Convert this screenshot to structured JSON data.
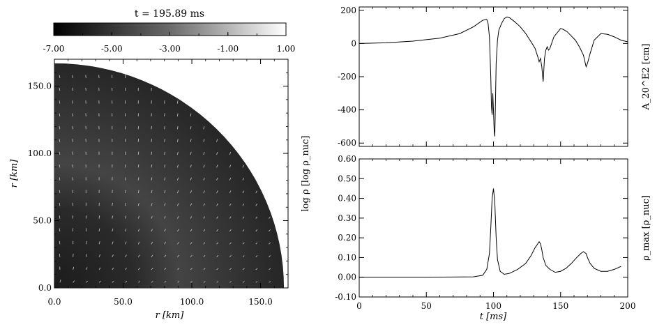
{
  "chart_data": [
    {
      "type": "heatmap",
      "title": "t = 195.89 ms",
      "colorbar": {
        "label": "log ρ [log ρ_nuc]",
        "ticks": [
          "-7.00",
          "-5.00",
          "-3.00",
          "-1.00",
          "1.00"
        ],
        "range": [
          -7.0,
          1.0
        ]
      },
      "xlabel": "r [km]",
      "ylabel": "r [km]",
      "xticks": [
        "0.0",
        "50.0",
        "100.0",
        "150.0"
      ],
      "yticks": [
        "0.0",
        "50.0",
        "100.0",
        "150.0"
      ],
      "xlim": [
        0,
        170
      ],
      "ylim": [
        0,
        170
      ],
      "domain_radius_km": 167,
      "velocity_arrows": true
    },
    {
      "type": "line",
      "ylabel": "A_20^E2 [cm]",
      "ylim": [
        -620,
        220
      ],
      "yticks": [
        "200",
        "0",
        "-200",
        "-400",
        "-600"
      ],
      "xlim": [
        0,
        200
      ],
      "series": [
        {
          "x": [
            0,
            20,
            40,
            60,
            75,
            85,
            92,
            95,
            96,
            97,
            98,
            98.5,
            99,
            99.5,
            100,
            100.5,
            101,
            101.5,
            102,
            103,
            104,
            106,
            108,
            110,
            112,
            116,
            120,
            124,
            128,
            131,
            133,
            134,
            135,
            136,
            137,
            138,
            139,
            140,
            141,
            142,
            145,
            150,
            152,
            155,
            158,
            161,
            164,
            167,
            169,
            170,
            172,
            175,
            180,
            185,
            190,
            195,
            200
          ],
          "y": [
            0,
            4,
            14,
            32,
            60,
            100,
            140,
            145,
            120,
            40,
            -200,
            -380,
            -430,
            -300,
            -400,
            -520,
            -560,
            -350,
            -120,
            20,
            80,
            120,
            150,
            160,
            155,
            130,
            100,
            60,
            10,
            -30,
            -80,
            -110,
            -90,
            -140,
            -230,
            -90,
            -40,
            -20,
            -40,
            -30,
            40,
            90,
            85,
            70,
            45,
            20,
            -20,
            -70,
            -140,
            -120,
            -60,
            20,
            60,
            55,
            40,
            20,
            10
          ]
        }
      ]
    },
    {
      "type": "line",
      "xlabel": "t [ms]",
      "ylabel": "ρ_max [ρ_nuc]",
      "ylim": [
        -0.1,
        0.6
      ],
      "yticks": [
        "0.60",
        "0.50",
        "0.40",
        "0.30",
        "0.20",
        "0.10",
        "0.00",
        "-0.10"
      ],
      "xticks": [
        "0",
        "50",
        "100",
        "150",
        "200"
      ],
      "xlim": [
        0,
        200
      ],
      "series": [
        {
          "x": [
            0,
            50,
            85,
            92,
            95,
            97,
            98,
            99,
            100,
            101,
            102,
            103,
            105,
            108,
            112,
            118,
            124,
            128,
            131,
            133,
            134,
            135,
            136,
            137,
            139,
            142,
            146,
            150,
            154,
            158,
            162,
            165,
            167,
            169,
            170,
            172,
            175,
            180,
            185,
            190,
            195
          ],
          "y": [
            0,
            0,
            0.002,
            0.01,
            0.04,
            0.12,
            0.25,
            0.4,
            0.45,
            0.38,
            0.2,
            0.09,
            0.03,
            0.015,
            0.02,
            0.04,
            0.07,
            0.11,
            0.15,
            0.17,
            0.18,
            0.17,
            0.14,
            0.1,
            0.06,
            0.04,
            0.025,
            0.03,
            0.045,
            0.07,
            0.1,
            0.12,
            0.13,
            0.12,
            0.1,
            0.07,
            0.045,
            0.03,
            0.03,
            0.04,
            0.055
          ]
        }
      ]
    }
  ]
}
